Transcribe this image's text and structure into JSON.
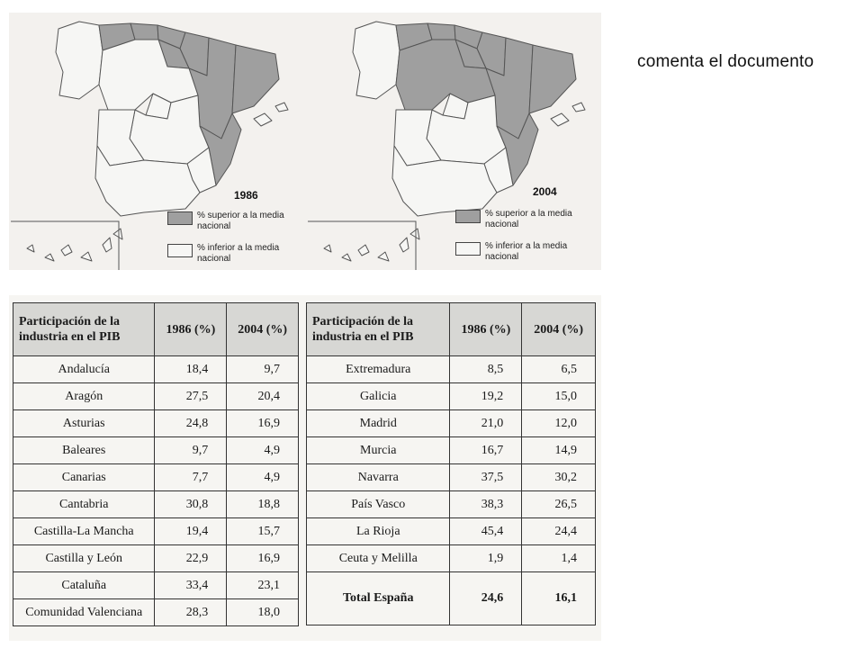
{
  "prompt": "comenta el documento",
  "colors": {
    "above": "#9f9f9f",
    "below": "#f6f6f4"
  },
  "maps": [
    {
      "year": "1986",
      "legend_above": "% superior a la media nacional",
      "legend_below": "% inferior a la media nacional"
    },
    {
      "year": "2004",
      "legend_above": "% superior a la media nacional",
      "legend_below": "% inferior a la media nacional"
    }
  ],
  "table": {
    "header": {
      "name": "Participación de la industria en el PIB",
      "y1986": "1986 (%)",
      "y2004": "2004 (%)"
    },
    "left": [
      {
        "region": "Andalucía",
        "v1986": "18,4",
        "v2004": "9,7"
      },
      {
        "region": "Aragón",
        "v1986": "27,5",
        "v2004": "20,4"
      },
      {
        "region": "Asturias",
        "v1986": "24,8",
        "v2004": "16,9"
      },
      {
        "region": "Baleares",
        "v1986": "9,7",
        "v2004": "4,9"
      },
      {
        "region": "Canarias",
        "v1986": "7,7",
        "v2004": "4,9"
      },
      {
        "region": "Cantabria",
        "v1986": "30,8",
        "v2004": "18,8"
      },
      {
        "region": "Castilla-La Mancha",
        "v1986": "19,4",
        "v2004": "15,7"
      },
      {
        "region": "Castilla y León",
        "v1986": "22,9",
        "v2004": "16,9"
      },
      {
        "region": "Cataluña",
        "v1986": "33,4",
        "v2004": "23,1"
      },
      {
        "region": "Comunidad Valenciana",
        "v1986": "28,3",
        "v2004": "18,0"
      }
    ],
    "right": [
      {
        "region": "Extremadura",
        "v1986": "8,5",
        "v2004": "6,5"
      },
      {
        "region": "Galicia",
        "v1986": "19,2",
        "v2004": "15,0"
      },
      {
        "region": "Madrid",
        "v1986": "21,0",
        "v2004": "12,0"
      },
      {
        "region": "Murcia",
        "v1986": "16,7",
        "v2004": "14,9"
      },
      {
        "region": "Navarra",
        "v1986": "37,5",
        "v2004": "30,2"
      },
      {
        "region": "País Vasco",
        "v1986": "38,3",
        "v2004": "26,5"
      },
      {
        "region": "La Rioja",
        "v1986": "45,4",
        "v2004": "24,4"
      },
      {
        "region": "Ceuta y Melilla",
        "v1986": "1,9",
        "v2004": "1,4"
      }
    ],
    "total": {
      "region": "Total España",
      "v1986": "24,6",
      "v2004": "16,1"
    }
  }
}
